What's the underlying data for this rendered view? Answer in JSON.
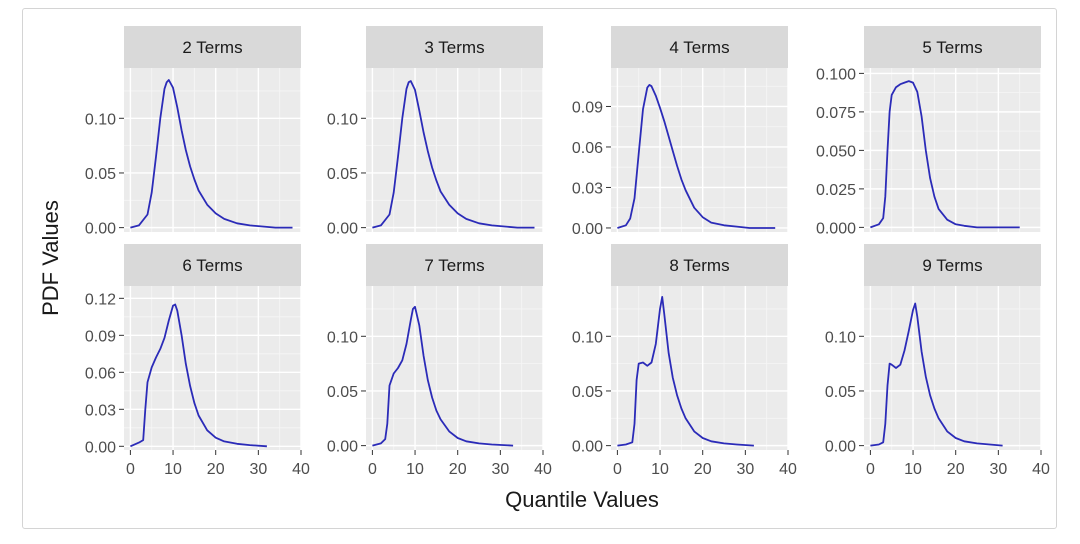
{
  "chart_data": {
    "type": "line",
    "xlabel": "Quantile Values",
    "ylabel": "PDF Values",
    "line_color": "#2b2bb8",
    "panel_background": "#ebebeb",
    "strip_background": "#d9d9d9",
    "grid": true,
    "x_ticks": [
      0,
      10,
      20,
      30,
      40
    ],
    "xlim": [
      -1.5,
      40
    ],
    "panels": [
      {
        "title": "2 Terms",
        "ylim": [
          -0.004,
          0.146
        ],
        "y_ticks": [
          0.0,
          0.05,
          0.1
        ],
        "y_tick_labels": [
          "0.00",
          "0.05",
          "0.10"
        ],
        "x": [
          0,
          2,
          4,
          5,
          6,
          7,
          8,
          8.5,
          9,
          10,
          11,
          12,
          13,
          14,
          15,
          16,
          18,
          20,
          22,
          25,
          28,
          31,
          34,
          38
        ],
        "y": [
          0.0,
          0.002,
          0.012,
          0.032,
          0.065,
          0.1,
          0.127,
          0.133,
          0.135,
          0.128,
          0.11,
          0.089,
          0.071,
          0.056,
          0.044,
          0.034,
          0.021,
          0.013,
          0.008,
          0.004,
          0.002,
          0.001,
          0.0,
          0.0
        ]
      },
      {
        "title": "3 Terms",
        "ylim": [
          -0.004,
          0.146
        ],
        "y_ticks": [
          0.0,
          0.05,
          0.1
        ],
        "y_tick_labels": [
          "0.00",
          "0.05",
          "0.10"
        ],
        "x": [
          0,
          2,
          4,
          5,
          6,
          7,
          8,
          8.5,
          9,
          10,
          11,
          12,
          13,
          14,
          15,
          16,
          18,
          20,
          22,
          25,
          28,
          31,
          34,
          38
        ],
        "y": [
          0.0,
          0.002,
          0.012,
          0.032,
          0.065,
          0.1,
          0.127,
          0.133,
          0.134,
          0.126,
          0.107,
          0.087,
          0.07,
          0.055,
          0.043,
          0.033,
          0.021,
          0.013,
          0.008,
          0.004,
          0.002,
          0.001,
          0.0,
          0.0
        ]
      },
      {
        "title": "4 Terms",
        "ylim": [
          -0.003,
          0.1185
        ],
        "y_ticks": [
          0.0,
          0.03,
          0.06,
          0.09
        ],
        "y_tick_labels": [
          "0.00",
          "0.03",
          "0.06",
          "0.09"
        ],
        "x": [
          0,
          2,
          3,
          4,
          5,
          6,
          7,
          7.5,
          8,
          9,
          10,
          11,
          12,
          13,
          14,
          15,
          16,
          18,
          20,
          22,
          25,
          28,
          31,
          34,
          37
        ],
        "y": [
          0.0,
          0.002,
          0.007,
          0.022,
          0.055,
          0.088,
          0.104,
          0.106,
          0.105,
          0.098,
          0.089,
          0.079,
          0.068,
          0.057,
          0.046,
          0.036,
          0.028,
          0.015,
          0.008,
          0.004,
          0.002,
          0.001,
          0.0,
          0.0,
          0.0
        ]
      },
      {
        "title": "5 Terms",
        "ylim": [
          -0.003,
          0.1035
        ],
        "y_ticks": [
          0.0,
          0.025,
          0.05,
          0.075,
          0.1
        ],
        "y_tick_labels": [
          "0.000",
          "0.025",
          "0.050",
          "0.075",
          "0.100"
        ],
        "x": [
          0,
          2,
          3,
          3.5,
          4,
          4.5,
          5,
          6,
          7,
          8,
          9,
          10,
          11,
          12,
          13,
          14,
          15,
          16,
          18,
          20,
          22,
          25,
          28,
          31,
          35
        ],
        "y": [
          0.0,
          0.002,
          0.006,
          0.02,
          0.05,
          0.075,
          0.086,
          0.091,
          0.093,
          0.094,
          0.095,
          0.094,
          0.088,
          0.072,
          0.05,
          0.032,
          0.02,
          0.012,
          0.005,
          0.002,
          0.001,
          0.0,
          0.0,
          0.0,
          0.0
        ]
      },
      {
        "title": "6 Terms",
        "ylim": [
          -0.003,
          0.13
        ],
        "y_ticks": [
          0.0,
          0.03,
          0.06,
          0.09,
          0.12
        ],
        "y_tick_labels": [
          "0.00",
          "0.03",
          "0.06",
          "0.09",
          "0.12"
        ],
        "x": [
          0,
          2,
          3,
          3.5,
          4,
          5,
          6,
          7,
          8,
          9,
          10,
          10.5,
          11,
          12,
          13,
          14,
          15,
          16,
          18,
          20,
          22,
          25,
          28,
          32
        ],
        "y": [
          0.0,
          0.003,
          0.005,
          0.03,
          0.052,
          0.064,
          0.072,
          0.079,
          0.088,
          0.102,
          0.114,
          0.115,
          0.11,
          0.09,
          0.067,
          0.049,
          0.035,
          0.025,
          0.013,
          0.007,
          0.004,
          0.002,
          0.001,
          0.0
        ]
      },
      {
        "title": "7 Terms",
        "ylim": [
          -0.004,
          0.146
        ],
        "y_ticks": [
          0.0,
          0.05,
          0.1
        ],
        "y_tick_labels": [
          "0.00",
          "0.05",
          "0.10"
        ],
        "x": [
          0,
          2,
          3,
          3.5,
          4,
          5,
          6,
          7,
          8,
          9,
          9.5,
          10,
          11,
          12,
          13,
          14,
          15,
          16,
          18,
          20,
          22,
          25,
          28,
          33
        ],
        "y": [
          0.0,
          0.002,
          0.006,
          0.02,
          0.055,
          0.066,
          0.071,
          0.078,
          0.093,
          0.115,
          0.125,
          0.127,
          0.11,
          0.082,
          0.06,
          0.044,
          0.032,
          0.024,
          0.013,
          0.007,
          0.004,
          0.002,
          0.001,
          0.0
        ]
      },
      {
        "title": "8 Terms",
        "ylim": [
          -0.004,
          0.146
        ],
        "y_ticks": [
          0.0,
          0.05,
          0.1
        ],
        "y_tick_labels": [
          "0.00",
          "0.05",
          "0.10"
        ],
        "x": [
          0,
          2,
          3.5,
          4,
          4.5,
          5,
          6,
          7,
          8,
          9,
          10,
          10.5,
          11,
          12,
          13,
          14,
          15,
          16,
          18,
          20,
          22,
          25,
          28,
          32
        ],
        "y": [
          0.0,
          0.001,
          0.003,
          0.02,
          0.06,
          0.075,
          0.076,
          0.073,
          0.076,
          0.093,
          0.125,
          0.136,
          0.12,
          0.085,
          0.062,
          0.046,
          0.034,
          0.025,
          0.013,
          0.007,
          0.004,
          0.002,
          0.001,
          0.0
        ]
      },
      {
        "title": "9 Terms",
        "ylim": [
          -0.004,
          0.146
        ],
        "y_ticks": [
          0.0,
          0.05,
          0.1
        ],
        "y_tick_labels": [
          "0.00",
          "0.05",
          "0.10"
        ],
        "x": [
          0,
          2,
          3,
          3.5,
          4,
          4.5,
          5,
          6,
          7,
          8,
          9,
          10,
          10.5,
          11,
          12,
          13,
          14,
          15,
          16,
          18,
          20,
          22,
          25,
          28,
          31
        ],
        "y": [
          0.0,
          0.001,
          0.003,
          0.02,
          0.055,
          0.075,
          0.074,
          0.071,
          0.074,
          0.087,
          0.105,
          0.124,
          0.13,
          0.118,
          0.086,
          0.063,
          0.046,
          0.034,
          0.025,
          0.013,
          0.007,
          0.004,
          0.002,
          0.001,
          0.0
        ]
      }
    ]
  }
}
